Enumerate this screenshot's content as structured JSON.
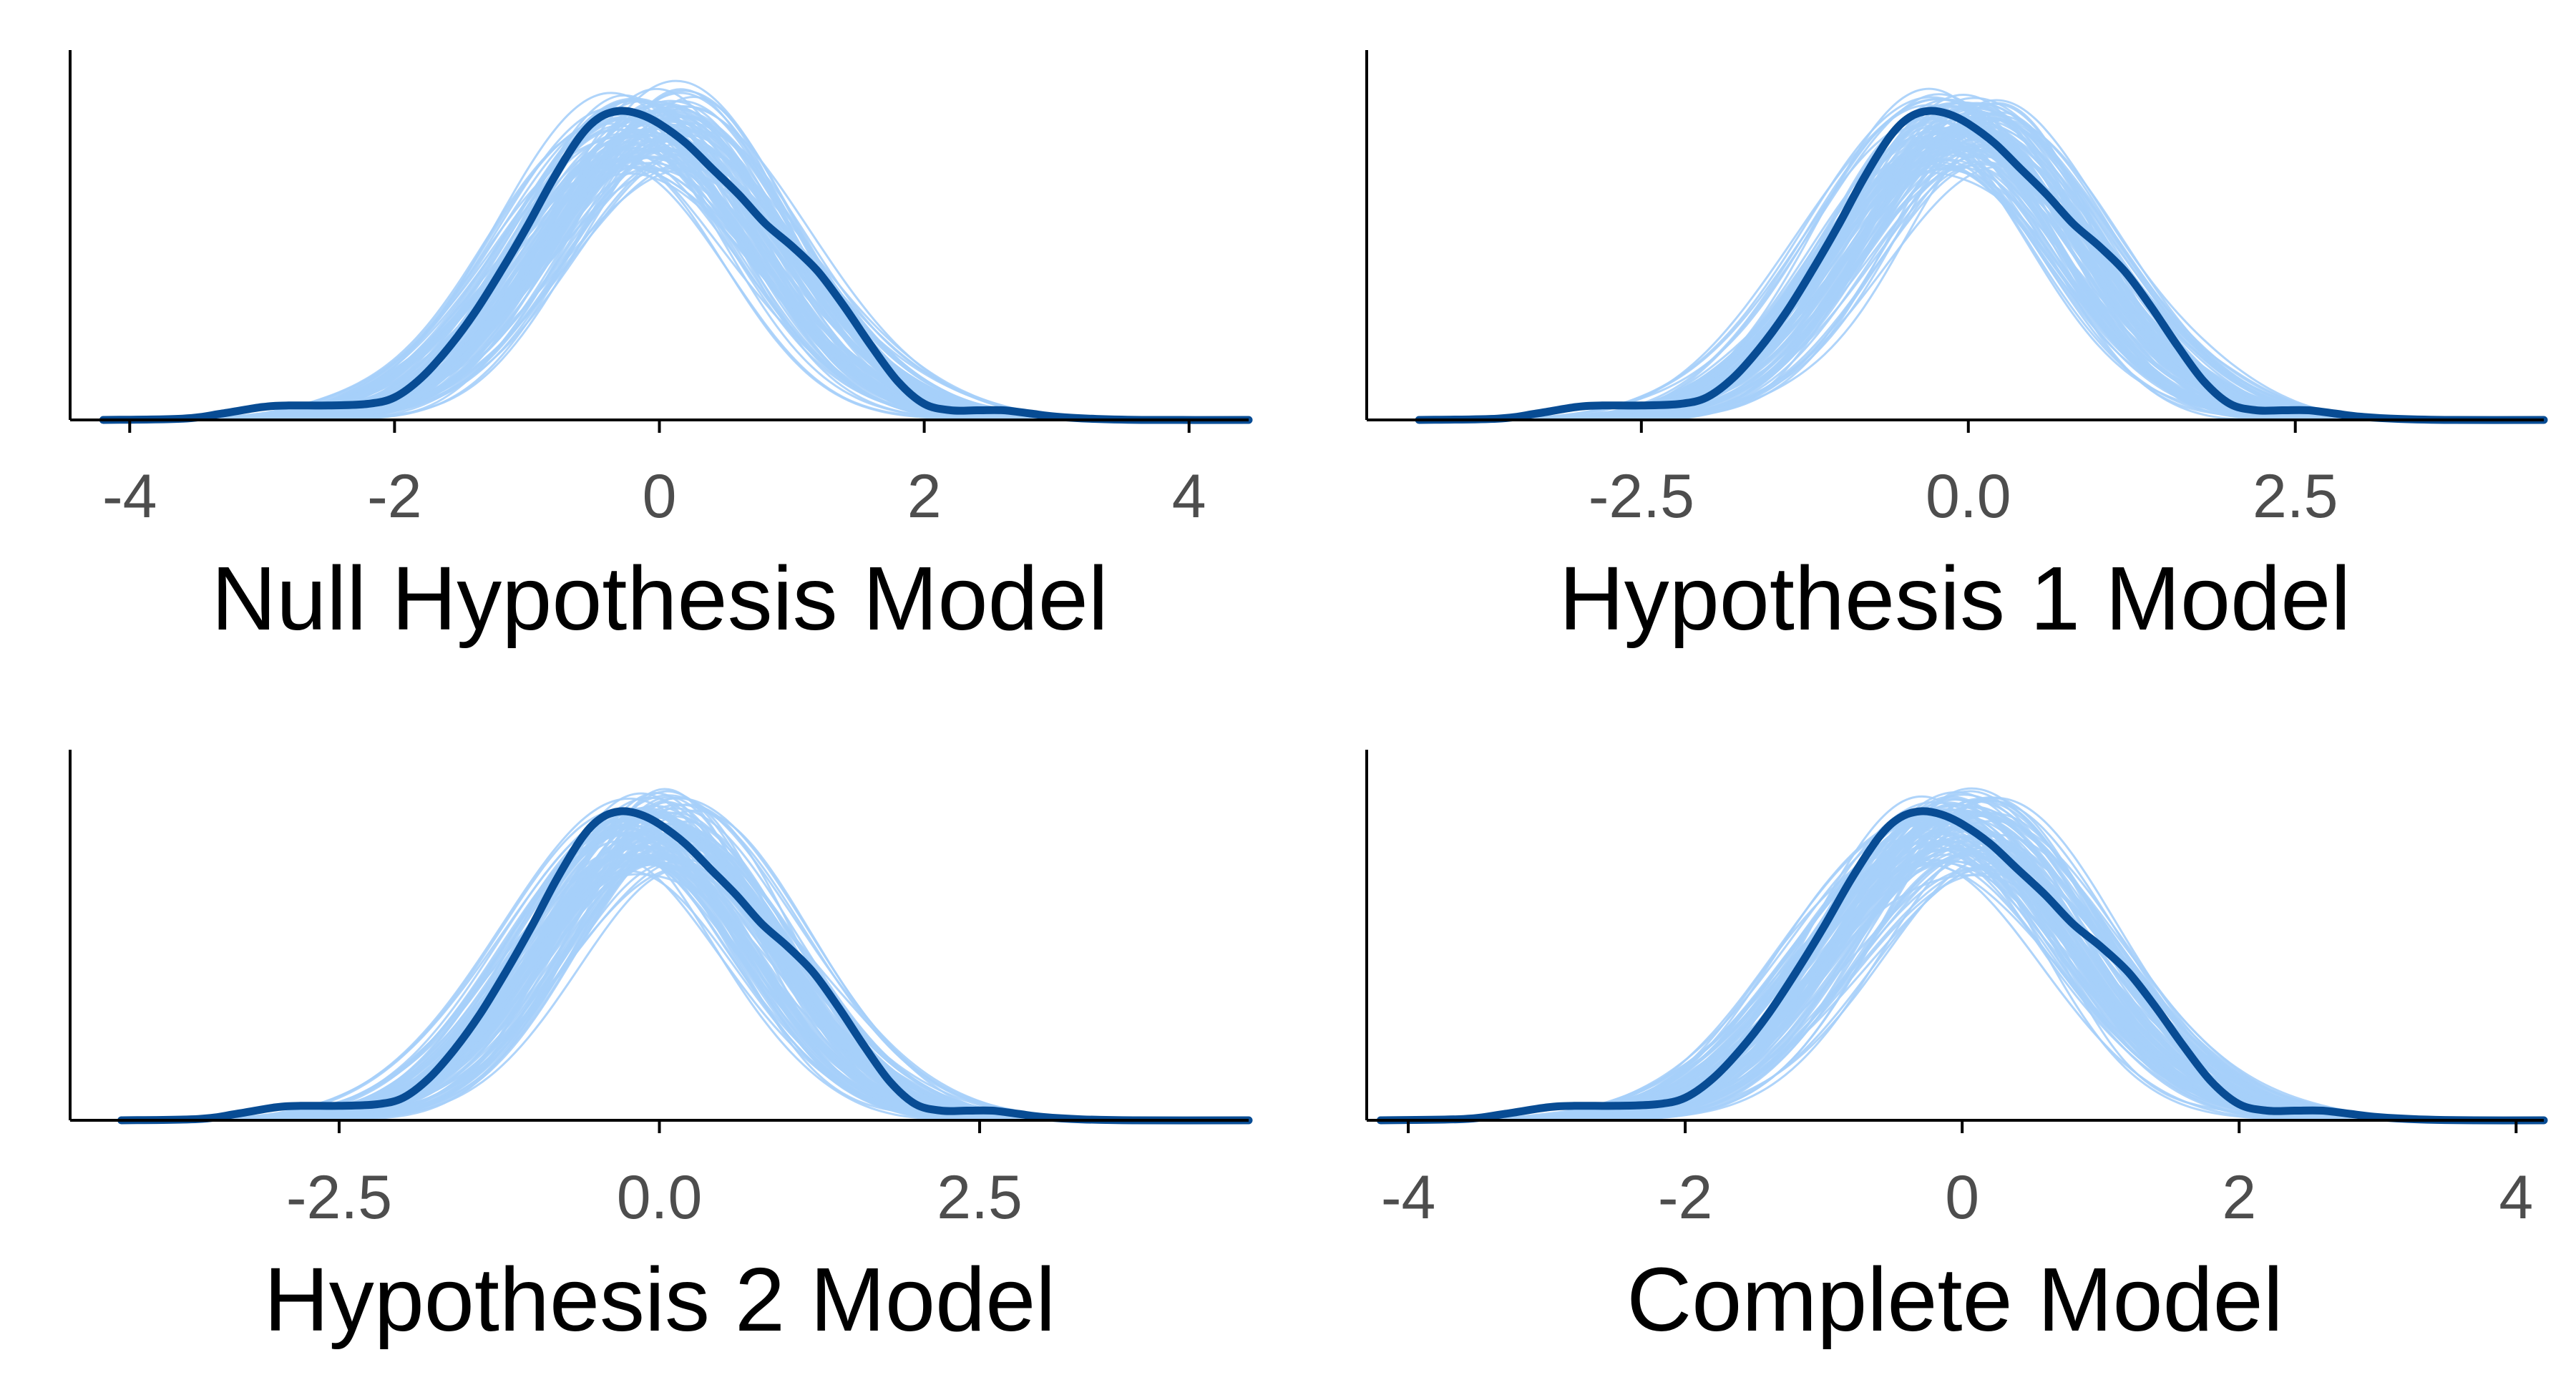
{
  "colors": {
    "observed": "#084c94",
    "replicated": "#a6cffa",
    "axis": "#000000",
    "tick_label": "#4d4d4d"
  },
  "chart_data": [
    {
      "type": "line",
      "panel": "top-left",
      "title": "Null Hypothesis Model",
      "xlim": [
        -4.45,
        4.45
      ],
      "xticks": [
        -4,
        -2,
        0,
        2,
        4
      ],
      "xtick_labels": [
        "-4",
        "-2",
        "0",
        "2",
        "4"
      ],
      "grid": false,
      "y_axis_labels": false,
      "series": [
        {
          "role": "observed",
          "x": [
            -4.2,
            -3.6,
            -3.3,
            -3.0,
            -2.8,
            -2.5,
            -2.2,
            -2.0,
            -1.8,
            -1.6,
            -1.4,
            -1.2,
            -1.0,
            -0.8,
            -0.6,
            -0.45,
            -0.3,
            -0.15,
            0.0,
            0.2,
            0.4,
            0.6,
            0.8,
            1.0,
            1.2,
            1.4,
            1.6,
            1.8,
            2.0,
            2.2,
            2.4,
            2.6,
            2.8,
            3.0,
            3.3,
            3.7,
            4.45
          ],
          "y": [
            0.0,
            0.004,
            0.02,
            0.04,
            0.045,
            0.045,
            0.05,
            0.07,
            0.13,
            0.22,
            0.33,
            0.46,
            0.6,
            0.75,
            0.88,
            0.94,
            0.96,
            0.95,
            0.92,
            0.86,
            0.78,
            0.7,
            0.61,
            0.54,
            0.46,
            0.35,
            0.23,
            0.12,
            0.05,
            0.03,
            0.03,
            0.03,
            0.02,
            0.01,
            0.003,
            0.0,
            0.0
          ]
        }
      ]
    },
    {
      "type": "line",
      "panel": "top-right",
      "title": "Hypothesis 1 Model",
      "xlim": [
        -4.6,
        4.4
      ],
      "xticks": [
        -2.5,
        0.0,
        2.5
      ],
      "xtick_labels": [
        "-2.5",
        "0.0",
        "2.5"
      ],
      "grid": false,
      "y_axis_labels": false,
      "series": [
        {
          "role": "observed",
          "x": [
            -4.2,
            -3.6,
            -3.3,
            -3.0,
            -2.8,
            -2.5,
            -2.2,
            -2.0,
            -1.8,
            -1.6,
            -1.4,
            -1.2,
            -1.0,
            -0.8,
            -0.6,
            -0.45,
            -0.3,
            -0.15,
            0.0,
            0.2,
            0.4,
            0.6,
            0.8,
            1.0,
            1.2,
            1.4,
            1.6,
            1.8,
            2.0,
            2.2,
            2.4,
            2.6,
            2.8,
            3.0,
            3.3,
            3.7,
            4.4
          ],
          "y": [
            0.0,
            0.004,
            0.02,
            0.04,
            0.045,
            0.045,
            0.05,
            0.07,
            0.13,
            0.22,
            0.33,
            0.46,
            0.6,
            0.75,
            0.88,
            0.94,
            0.96,
            0.95,
            0.92,
            0.86,
            0.78,
            0.7,
            0.61,
            0.54,
            0.46,
            0.35,
            0.23,
            0.12,
            0.05,
            0.03,
            0.03,
            0.03,
            0.02,
            0.01,
            0.003,
            0.0,
            0.0
          ]
        }
      ]
    },
    {
      "type": "line",
      "panel": "bottom-left",
      "title": "Hypothesis 2 Model",
      "xlim": [
        -4.6,
        4.6
      ],
      "xticks": [
        -2.5,
        0.0,
        2.5
      ],
      "xtick_labels": [
        "-2.5",
        "0.0",
        "2.5"
      ],
      "grid": false,
      "y_axis_labels": false,
      "series": [
        {
          "role": "observed",
          "x": [
            -4.2,
            -3.6,
            -3.3,
            -3.0,
            -2.8,
            -2.5,
            -2.2,
            -2.0,
            -1.8,
            -1.6,
            -1.4,
            -1.2,
            -1.0,
            -0.8,
            -0.6,
            -0.45,
            -0.3,
            -0.15,
            0.0,
            0.2,
            0.4,
            0.6,
            0.8,
            1.0,
            1.2,
            1.4,
            1.6,
            1.8,
            2.0,
            2.2,
            2.4,
            2.6,
            2.8,
            3.0,
            3.3,
            3.7,
            4.6
          ],
          "y": [
            0.0,
            0.004,
            0.02,
            0.04,
            0.045,
            0.045,
            0.05,
            0.07,
            0.13,
            0.22,
            0.33,
            0.46,
            0.6,
            0.75,
            0.88,
            0.94,
            0.96,
            0.95,
            0.92,
            0.86,
            0.78,
            0.7,
            0.61,
            0.54,
            0.46,
            0.35,
            0.23,
            0.12,
            0.05,
            0.03,
            0.03,
            0.03,
            0.02,
            0.01,
            0.003,
            0.0,
            0.0
          ]
        }
      ]
    },
    {
      "type": "line",
      "panel": "bottom-right",
      "title": "Complete Model",
      "xlim": [
        -4.3,
        4.2
      ],
      "xticks": [
        -4,
        -2,
        0,
        2,
        4
      ],
      "xtick_labels": [
        "-4",
        "-2",
        "0",
        "2",
        "4"
      ],
      "grid": false,
      "y_axis_labels": false,
      "series": [
        {
          "role": "observed",
          "x": [
            -4.2,
            -3.6,
            -3.3,
            -3.0,
            -2.8,
            -2.5,
            -2.2,
            -2.0,
            -1.8,
            -1.6,
            -1.4,
            -1.2,
            -1.0,
            -0.8,
            -0.6,
            -0.45,
            -0.3,
            -0.15,
            0.0,
            0.2,
            0.4,
            0.6,
            0.8,
            1.0,
            1.2,
            1.4,
            1.6,
            1.8,
            2.0,
            2.2,
            2.4,
            2.6,
            2.8,
            3.0,
            3.3,
            3.7,
            4.2
          ],
          "y": [
            0.0,
            0.004,
            0.02,
            0.04,
            0.045,
            0.045,
            0.05,
            0.07,
            0.13,
            0.22,
            0.33,
            0.46,
            0.6,
            0.75,
            0.88,
            0.94,
            0.96,
            0.95,
            0.92,
            0.86,
            0.78,
            0.7,
            0.61,
            0.54,
            0.46,
            0.35,
            0.23,
            0.12,
            0.05,
            0.03,
            0.03,
            0.03,
            0.02,
            0.01,
            0.003,
            0.0,
            0.0
          ]
        }
      ]
    }
  ]
}
